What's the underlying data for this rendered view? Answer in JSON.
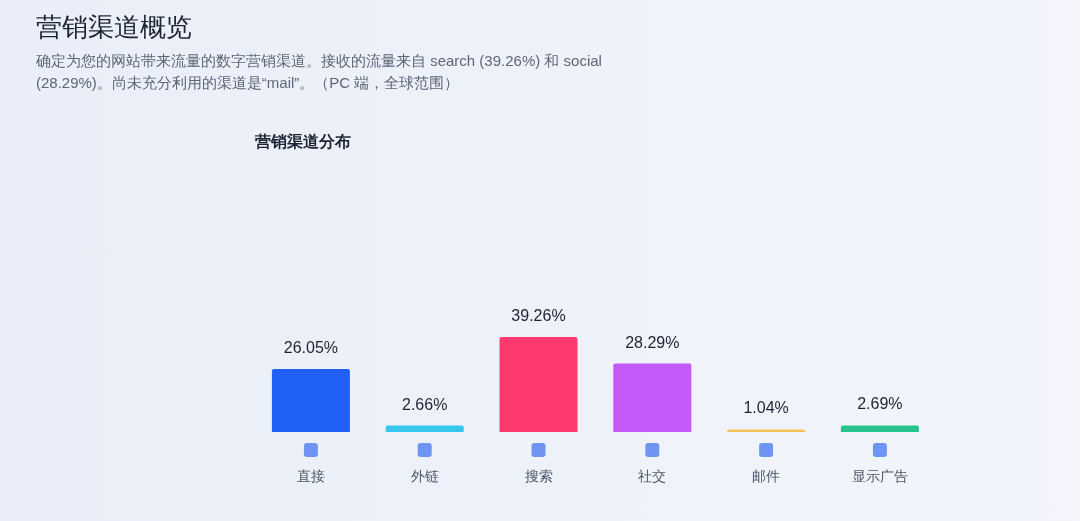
{
  "chart_data": {
    "type": "bar",
    "title": "营销渠道概览",
    "subtitle": "确定为您的网站带来流量的数字营销渠道。接收的流量来自 search (39.26%) 和 social (28.29%)。尚未充分利用的渠道是“mail”。（PC 端，全球范围）",
    "annotations": [
      "营销渠道分布"
    ],
    "categories": [
      "直接",
      "外链",
      "搜索",
      "社交",
      "邮件",
      "显示广告"
    ],
    "values": [
      26.05,
      2.66,
      39.26,
      28.29,
      1.04,
      2.69
    ],
    "colors": [
      "#2160f6",
      "#36c8ec",
      "#fc3a6e",
      "#c459f7",
      "#f5c25a",
      "#27c38a"
    ],
    "value_labels": [
      "26.05%",
      "2.66%",
      "39.26%",
      "28.29%",
      "1.04%",
      "2.69%"
    ]
  }
}
